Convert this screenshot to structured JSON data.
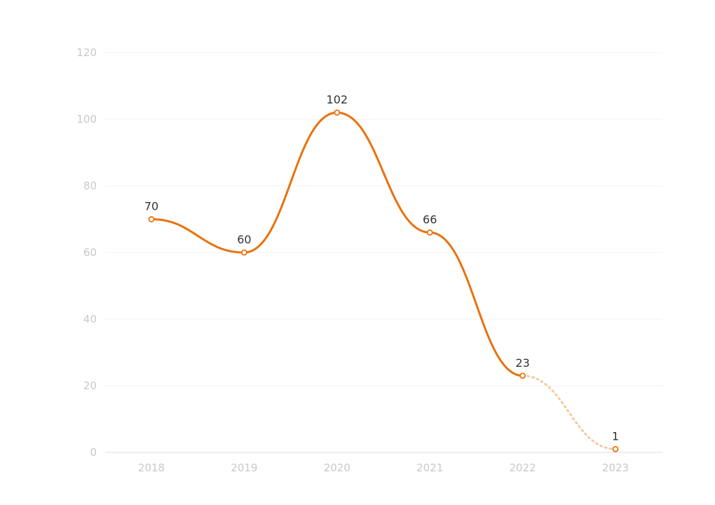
{
  "chart_data": {
    "type": "line",
    "title": "",
    "xlabel": "",
    "ylabel": "",
    "categories": [
      "2018",
      "2019",
      "2020",
      "2021",
      "2022",
      "2023"
    ],
    "series": [
      {
        "values": [
          70,
          60,
          102,
          66,
          23,
          1
        ],
        "color": "#e8720c",
        "projected_from_index": 4,
        "projected_color": "#f5c9a0",
        "data_labels": [
          "70",
          "60",
          "102",
          "66",
          "23",
          "1"
        ]
      }
    ],
    "ylim": [
      0,
      120
    ],
    "yticks": [
      "0",
      "20",
      "40",
      "60",
      "80",
      "100",
      "120"
    ],
    "grid": true,
    "legend": "none"
  }
}
